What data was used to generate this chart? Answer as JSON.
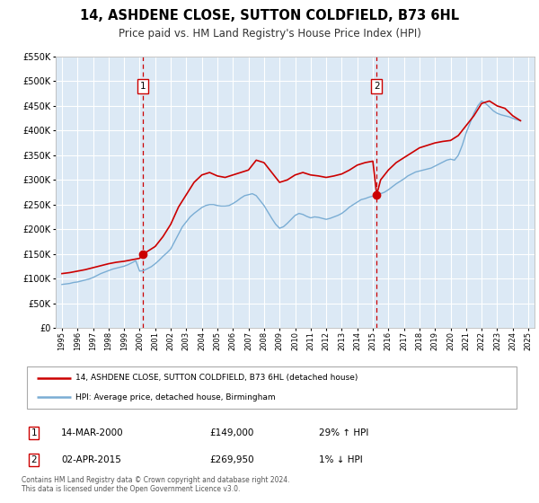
{
  "title": "14, ASHDENE CLOSE, SUTTON COLDFIELD, B73 6HL",
  "subtitle": "Price paid vs. HM Land Registry's House Price Index (HPI)",
  "title_fontsize": 10.5,
  "subtitle_fontsize": 8.5,
  "background_color": "#ffffff",
  "plot_bg_color": "#dce9f5",
  "grid_color": "#ffffff",
  "ylim": [
    0,
    550000
  ],
  "ytick_step": 50000,
  "xlim_start": 1994.6,
  "xlim_end": 2025.4,
  "legend_label_red": "14, ASHDENE CLOSE, SUTTON COLDFIELD, B73 6HL (detached house)",
  "legend_label_blue": "HPI: Average price, detached house, Birmingham",
  "sale1_date": "14-MAR-2000",
  "sale1_price": "£149,000",
  "sale1_hpi": "29% ↑ HPI",
  "sale1_year": 2000.2,
  "sale1_value": 149000,
  "sale2_date": "02-APR-2015",
  "sale2_price": "£269,950",
  "sale2_hpi": "1% ↓ HPI",
  "sale2_year": 2015.25,
  "sale2_value": 269950,
  "vline1_year": 2000.2,
  "vline2_year": 2015.25,
  "red_color": "#cc0000",
  "blue_color": "#7aadd4",
  "vline_color": "#cc0000",
  "footer_text": "Contains HM Land Registry data © Crown copyright and database right 2024.\nThis data is licensed under the Open Government Licence v3.0.",
  "hpi_data_x": [
    1995.0,
    1995.25,
    1995.5,
    1995.75,
    1996.0,
    1996.25,
    1996.5,
    1996.75,
    1997.0,
    1997.25,
    1997.5,
    1997.75,
    1998.0,
    1998.25,
    1998.5,
    1998.75,
    1999.0,
    1999.25,
    1999.5,
    1999.75,
    2000.0,
    2000.25,
    2000.5,
    2000.75,
    2001.0,
    2001.25,
    2001.5,
    2001.75,
    2002.0,
    2002.25,
    2002.5,
    2002.75,
    2003.0,
    2003.25,
    2003.5,
    2003.75,
    2004.0,
    2004.25,
    2004.5,
    2004.75,
    2005.0,
    2005.25,
    2005.5,
    2005.75,
    2006.0,
    2006.25,
    2006.5,
    2006.75,
    2007.0,
    2007.25,
    2007.5,
    2007.75,
    2008.0,
    2008.25,
    2008.5,
    2008.75,
    2009.0,
    2009.25,
    2009.5,
    2009.75,
    2010.0,
    2010.25,
    2010.5,
    2010.75,
    2011.0,
    2011.25,
    2011.5,
    2011.75,
    2012.0,
    2012.25,
    2012.5,
    2012.75,
    2013.0,
    2013.25,
    2013.5,
    2013.75,
    2014.0,
    2014.25,
    2014.5,
    2014.75,
    2015.0,
    2015.25,
    2015.5,
    2015.75,
    2016.0,
    2016.25,
    2016.5,
    2016.75,
    2017.0,
    2017.25,
    2017.5,
    2017.75,
    2018.0,
    2018.25,
    2018.5,
    2018.75,
    2019.0,
    2019.25,
    2019.5,
    2019.75,
    2020.0,
    2020.25,
    2020.5,
    2020.75,
    2021.0,
    2021.25,
    2021.5,
    2021.75,
    2022.0,
    2022.25,
    2022.5,
    2022.75,
    2023.0,
    2023.25,
    2023.5,
    2023.75,
    2024.0,
    2024.25,
    2024.5
  ],
  "hpi_data_y": [
    88000,
    89000,
    90000,
    92000,
    93000,
    95000,
    97000,
    99000,
    102000,
    106000,
    110000,
    113000,
    116000,
    119000,
    121000,
    123000,
    125000,
    128000,
    132000,
    136000,
    115000,
    116000,
    120000,
    124000,
    130000,
    137000,
    145000,
    152000,
    160000,
    175000,
    190000,
    205000,
    215000,
    225000,
    232000,
    238000,
    244000,
    248000,
    250000,
    250000,
    248000,
    247000,
    247000,
    248000,
    252000,
    257000,
    263000,
    268000,
    270000,
    272000,
    268000,
    258000,
    248000,
    235000,
    222000,
    210000,
    202000,
    205000,
    212000,
    220000,
    228000,
    232000,
    230000,
    226000,
    223000,
    225000,
    224000,
    222000,
    220000,
    222000,
    225000,
    228000,
    232000,
    238000,
    245000,
    250000,
    255000,
    260000,
    262000,
    265000,
    267000,
    270000,
    272000,
    275000,
    280000,
    286000,
    292000,
    297000,
    302000,
    308000,
    312000,
    316000,
    318000,
    320000,
    322000,
    324000,
    328000,
    332000,
    336000,
    340000,
    342000,
    340000,
    350000,
    370000,
    395000,
    415000,
    435000,
    450000,
    460000,
    455000,
    448000,
    440000,
    435000,
    432000,
    430000,
    428000,
    425000,
    422000,
    420000
  ],
  "red_data_x": [
    1995.0,
    1995.5,
    1996.0,
    1996.5,
    1997.0,
    1997.5,
    1998.0,
    1998.5,
    1999.0,
    1999.5,
    2000.0,
    2000.2,
    2000.5,
    2001.0,
    2001.5,
    2002.0,
    2002.5,
    2003.0,
    2003.5,
    2004.0,
    2004.5,
    2005.0,
    2005.5,
    2006.0,
    2006.5,
    2007.0,
    2007.5,
    2008.0,
    2008.5,
    2009.0,
    2009.5,
    2010.0,
    2010.5,
    2011.0,
    2011.5,
    2012.0,
    2012.5,
    2013.0,
    2013.5,
    2014.0,
    2014.5,
    2015.0,
    2015.25,
    2015.5,
    2016.0,
    2016.5,
    2017.0,
    2017.5,
    2018.0,
    2018.5,
    2019.0,
    2019.5,
    2020.0,
    2020.5,
    2021.0,
    2021.5,
    2022.0,
    2022.5,
    2023.0,
    2023.5,
    2024.0,
    2024.5
  ],
  "red_data_y": [
    110000,
    112000,
    115000,
    118000,
    122000,
    126000,
    130000,
    133000,
    135000,
    138000,
    141000,
    149000,
    155000,
    165000,
    185000,
    210000,
    245000,
    270000,
    295000,
    310000,
    315000,
    308000,
    305000,
    310000,
    315000,
    320000,
    340000,
    335000,
    315000,
    295000,
    300000,
    310000,
    315000,
    310000,
    308000,
    305000,
    308000,
    312000,
    320000,
    330000,
    335000,
    338000,
    269950,
    300000,
    320000,
    335000,
    345000,
    355000,
    365000,
    370000,
    375000,
    378000,
    380000,
    390000,
    410000,
    430000,
    455000,
    460000,
    450000,
    445000,
    430000,
    420000
  ]
}
